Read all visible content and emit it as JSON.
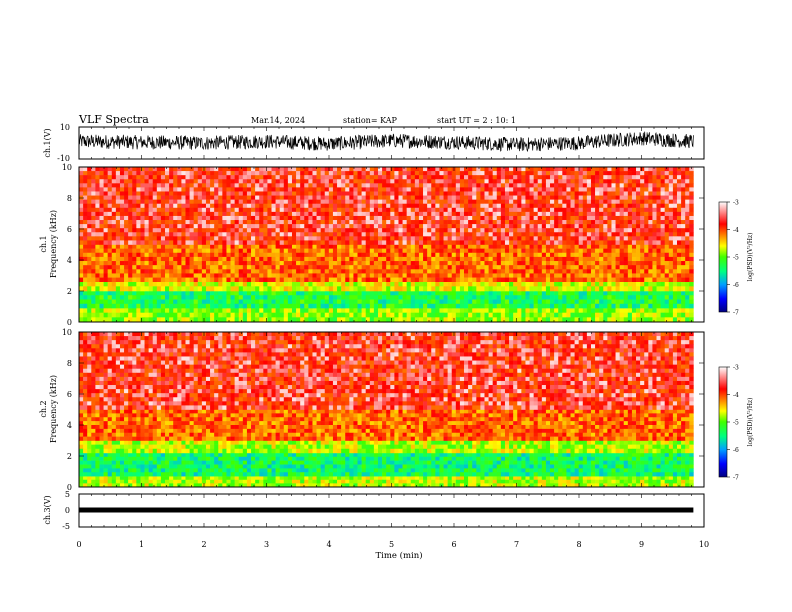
{
  "header": {
    "title": "VLF Spectra",
    "date": "Mar.14, 2024",
    "station": "station= KAP",
    "start": "start UT =  2 : 10: 1"
  },
  "chart_data": [
    {
      "type": "line",
      "panel": "ch1-waveform",
      "ylabel": "ch.1(V)",
      "ylim": [
        -10,
        10
      ],
      "yticks": [
        "10",
        "-10"
      ],
      "x_range_min": [
        0,
        9.83
      ],
      "series": [
        {
          "x": [
            0,
            1,
            2,
            3,
            4,
            5,
            6,
            7,
            8,
            9,
            9.8
          ],
          "y": [
            1,
            0.5,
            0,
            1,
            -0.5,
            1.5,
            0.5,
            -1,
            0,
            3,
            1
          ]
        }
      ]
    },
    {
      "type": "heatmap",
      "panel": "ch1-spectrogram",
      "ylabel": "ch.1 Frequency (kHz)",
      "ylim": [
        0,
        10
      ],
      "yticks": [
        "0",
        "2",
        "4",
        "6",
        "8",
        "10"
      ],
      "x_range_min": [
        0,
        9.83
      ],
      "colorbar": {
        "label": "log(PSD)(V²/Hz)",
        "ticks": [
          "-3",
          "-4",
          "-5",
          "-6",
          "-7"
        ],
        "range": [
          -7,
          -3
        ],
        "colors": [
          "#000080",
          "#0000ff",
          "#00a0ff",
          "#00ff80",
          "#40ff00",
          "#ffff00",
          "#ff8000",
          "#ff0000",
          "#ffffff"
        ]
      },
      "bands_khz": [
        {
          "from": 0,
          "to": 0.9,
          "level": -4.8
        },
        {
          "from": 0.9,
          "to": 2.0,
          "level": -5.3
        },
        {
          "from": 2.0,
          "to": 2.6,
          "level": -4.6
        },
        {
          "from": 2.6,
          "to": 5.0,
          "level": -3.9
        },
        {
          "from": 5.0,
          "to": 10,
          "level": -3.5
        }
      ]
    },
    {
      "type": "heatmap",
      "panel": "ch2-spectrogram",
      "ylabel": "ch.2 Frequency (kHz)",
      "ylim": [
        0,
        10
      ],
      "yticks": [
        "0",
        "2",
        "4",
        "6",
        "8",
        "10"
      ],
      "x_range_min": [
        0,
        9.83
      ],
      "colorbar": {
        "label": "log(PSD)(V²/Hz)",
        "ticks": [
          "-3",
          "-4",
          "-5",
          "-6",
          "-7"
        ],
        "range": [
          -7,
          -3
        ],
        "colors": [
          "#000080",
          "#0000ff",
          "#00a0ff",
          "#00ff80",
          "#40ff00",
          "#ffff00",
          "#ff8000",
          "#ff0000",
          "#ffffff"
        ]
      },
      "bands_khz": [
        {
          "from": 0,
          "to": 0.7,
          "level": -4.7
        },
        {
          "from": 0.7,
          "to": 2.2,
          "level": -5.4
        },
        {
          "from": 2.2,
          "to": 3.0,
          "level": -4.7
        },
        {
          "from": 3.0,
          "to": 5.0,
          "level": -3.9
        },
        {
          "from": 5.0,
          "to": 10,
          "level": -3.5
        }
      ]
    },
    {
      "type": "line",
      "panel": "ch3-waveform",
      "ylabel": "ch.3(V)",
      "ylim": [
        -5,
        5
      ],
      "yticks": [
        "5",
        "0",
        "-5"
      ],
      "x_range_min": [
        0,
        9.83
      ],
      "series": [
        {
          "x": [
            0,
            9.83
          ],
          "y": [
            0,
            0
          ]
        }
      ]
    }
  ],
  "time_axis": {
    "label": "Time (min)",
    "ticks": [
      "0",
      "1",
      "2",
      "3",
      "4",
      "5",
      "6",
      "7",
      "8",
      "9",
      "10"
    ],
    "range": [
      0,
      10
    ]
  }
}
